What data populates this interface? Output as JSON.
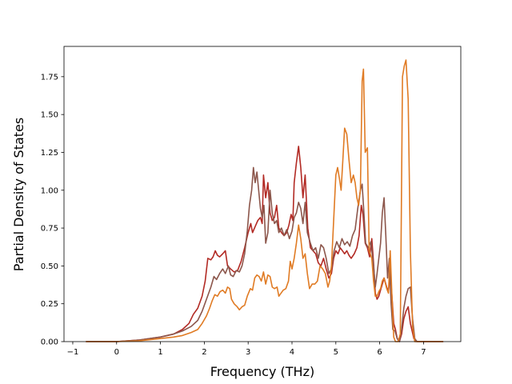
{
  "chart_data": {
    "type": "line",
    "title": "",
    "xlabel": "Frequency (THz)",
    "ylabel": "Partial Density of States",
    "xlim": [
      -1.2,
      7.85
    ],
    "ylim": [
      0.0,
      1.95
    ],
    "xticks": [
      -1,
      0,
      1,
      2,
      3,
      4,
      5,
      6,
      7
    ],
    "xtick_labels": [
      "−1",
      "0",
      "1",
      "2",
      "3",
      "4",
      "5",
      "6",
      "7"
    ],
    "yticks": [
      0.0,
      0.25,
      0.5,
      0.75,
      1.0,
      1.25,
      1.5,
      1.75
    ],
    "ytick_labels": [
      "0.00",
      "0.25",
      "0.50",
      "0.75",
      "1.00",
      "1.25",
      "1.50",
      "1.75"
    ],
    "grid": false,
    "legend": "none",
    "series": [
      {
        "color": "#b22a24",
        "points": [
          [
            -0.7,
            0.0
          ],
          [
            0.0,
            0.0
          ],
          [
            0.5,
            0.01
          ],
          [
            1.0,
            0.03
          ],
          [
            1.3,
            0.05
          ],
          [
            1.5,
            0.08
          ],
          [
            1.65,
            0.12
          ],
          [
            1.75,
            0.18
          ],
          [
            1.85,
            0.22
          ],
          [
            1.95,
            0.3
          ],
          [
            2.02,
            0.4
          ],
          [
            2.08,
            0.55
          ],
          [
            2.15,
            0.54
          ],
          [
            2.2,
            0.56
          ],
          [
            2.25,
            0.6
          ],
          [
            2.3,
            0.57
          ],
          [
            2.35,
            0.56
          ],
          [
            2.42,
            0.58
          ],
          [
            2.48,
            0.6
          ],
          [
            2.53,
            0.5
          ],
          [
            2.6,
            0.48
          ],
          [
            2.68,
            0.46
          ],
          [
            2.76,
            0.47
          ],
          [
            2.84,
            0.53
          ],
          [
            2.92,
            0.62
          ],
          [
            3.0,
            0.72
          ],
          [
            3.06,
            0.78
          ],
          [
            3.1,
            0.72
          ],
          [
            3.16,
            0.76
          ],
          [
            3.22,
            0.8
          ],
          [
            3.28,
            0.82
          ],
          [
            3.32,
            0.78
          ],
          [
            3.35,
            1.1
          ],
          [
            3.4,
            0.95
          ],
          [
            3.45,
            1.05
          ],
          [
            3.5,
            0.85
          ],
          [
            3.55,
            0.8
          ],
          [
            3.6,
            0.82
          ],
          [
            3.65,
            0.9
          ],
          [
            3.7,
            0.75
          ],
          [
            3.76,
            0.72
          ],
          [
            3.82,
            0.7
          ],
          [
            3.88,
            0.72
          ],
          [
            3.93,
            0.77
          ],
          [
            3.98,
            0.84
          ],
          [
            4.02,
            0.8
          ],
          [
            4.05,
            1.05
          ],
          [
            4.1,
            1.18
          ],
          [
            4.15,
            1.29
          ],
          [
            4.2,
            1.15
          ],
          [
            4.25,
            0.95
          ],
          [
            4.3,
            1.1
          ],
          [
            4.36,
            0.75
          ],
          [
            4.42,
            0.62
          ],
          [
            4.48,
            0.6
          ],
          [
            4.54,
            0.58
          ],
          [
            4.6,
            0.52
          ],
          [
            4.66,
            0.5
          ],
          [
            4.72,
            0.55
          ],
          [
            4.78,
            0.48
          ],
          [
            4.84,
            0.42
          ],
          [
            4.9,
            0.45
          ],
          [
            4.95,
            0.55
          ],
          [
            5.0,
            0.6
          ],
          [
            5.05,
            0.58
          ],
          [
            5.1,
            0.62
          ],
          [
            5.15,
            0.6
          ],
          [
            5.2,
            0.58
          ],
          [
            5.25,
            0.6
          ],
          [
            5.3,
            0.57
          ],
          [
            5.35,
            0.55
          ],
          [
            5.42,
            0.58
          ],
          [
            5.48,
            0.62
          ],
          [
            5.53,
            0.7
          ],
          [
            5.58,
            0.9
          ],
          [
            5.62,
            0.84
          ],
          [
            5.67,
            0.65
          ],
          [
            5.72,
            0.62
          ],
          [
            5.77,
            0.56
          ],
          [
            5.82,
            0.68
          ],
          [
            5.86,
            0.52
          ],
          [
            5.9,
            0.32
          ],
          [
            5.94,
            0.28
          ],
          [
            5.98,
            0.3
          ],
          [
            6.02,
            0.34
          ],
          [
            6.06,
            0.38
          ],
          [
            6.1,
            0.42
          ],
          [
            6.16,
            0.36
          ],
          [
            6.2,
            0.33
          ],
          [
            6.24,
            0.45
          ],
          [
            6.28,
            0.3
          ],
          [
            6.32,
            0.12
          ],
          [
            6.36,
            0.08
          ],
          [
            6.4,
            0.02
          ],
          [
            6.45,
            0.0
          ],
          [
            6.5,
            0.05
          ],
          [
            6.55,
            0.15
          ],
          [
            6.6,
            0.2
          ],
          [
            6.65,
            0.23
          ],
          [
            6.7,
            0.12
          ],
          [
            6.78,
            0.02
          ],
          [
            6.85,
            0.0
          ],
          [
            7.45,
            0.0
          ]
        ]
      },
      {
        "color": "#8c564b",
        "points": [
          [
            -0.7,
            0.0
          ],
          [
            0.0,
            0.0
          ],
          [
            0.5,
            0.01
          ],
          [
            1.0,
            0.03
          ],
          [
            1.3,
            0.05
          ],
          [
            1.5,
            0.07
          ],
          [
            1.7,
            0.1
          ],
          [
            1.85,
            0.14
          ],
          [
            1.95,
            0.2
          ],
          [
            2.05,
            0.28
          ],
          [
            2.15,
            0.36
          ],
          [
            2.22,
            0.43
          ],
          [
            2.28,
            0.41
          ],
          [
            2.35,
            0.45
          ],
          [
            2.42,
            0.48
          ],
          [
            2.48,
            0.45
          ],
          [
            2.55,
            0.5
          ],
          [
            2.6,
            0.44
          ],
          [
            2.66,
            0.43
          ],
          [
            2.73,
            0.47
          ],
          [
            2.8,
            0.46
          ],
          [
            2.86,
            0.5
          ],
          [
            2.92,
            0.58
          ],
          [
            2.98,
            0.73
          ],
          [
            3.03,
            0.9
          ],
          [
            3.08,
            1.0
          ],
          [
            3.12,
            1.15
          ],
          [
            3.16,
            1.05
          ],
          [
            3.2,
            1.12
          ],
          [
            3.24,
            1.0
          ],
          [
            3.28,
            0.88
          ],
          [
            3.32,
            0.82
          ],
          [
            3.36,
            0.9
          ],
          [
            3.4,
            0.65
          ],
          [
            3.45,
            0.72
          ],
          [
            3.5,
            1.0
          ],
          [
            3.55,
            0.85
          ],
          [
            3.6,
            0.78
          ],
          [
            3.65,
            0.8
          ],
          [
            3.7,
            0.72
          ],
          [
            3.76,
            0.75
          ],
          [
            3.82,
            0.7
          ],
          [
            3.88,
            0.74
          ],
          [
            3.94,
            0.68
          ],
          [
            4.0,
            0.73
          ],
          [
            4.05,
            0.82
          ],
          [
            4.1,
            0.85
          ],
          [
            4.15,
            0.92
          ],
          [
            4.2,
            0.88
          ],
          [
            4.25,
            0.78
          ],
          [
            4.3,
            0.92
          ],
          [
            4.35,
            0.72
          ],
          [
            4.42,
            0.65
          ],
          [
            4.48,
            0.6
          ],
          [
            4.54,
            0.62
          ],
          [
            4.6,
            0.55
          ],
          [
            4.66,
            0.64
          ],
          [
            4.72,
            0.62
          ],
          [
            4.78,
            0.55
          ],
          [
            4.84,
            0.45
          ],
          [
            4.9,
            0.48
          ],
          [
            4.96,
            0.6
          ],
          [
            5.02,
            0.66
          ],
          [
            5.08,
            0.62
          ],
          [
            5.14,
            0.68
          ],
          [
            5.2,
            0.64
          ],
          [
            5.26,
            0.66
          ],
          [
            5.32,
            0.63
          ],
          [
            5.38,
            0.7
          ],
          [
            5.44,
            0.74
          ],
          [
            5.5,
            0.88
          ],
          [
            5.56,
            1.0
          ],
          [
            5.6,
            1.04
          ],
          [
            5.64,
            0.85
          ],
          [
            5.68,
            0.65
          ],
          [
            5.74,
            0.62
          ],
          [
            5.8,
            0.66
          ],
          [
            5.86,
            0.5
          ],
          [
            5.9,
            0.36
          ],
          [
            5.94,
            0.45
          ],
          [
            5.98,
            0.55
          ],
          [
            6.02,
            0.65
          ],
          [
            6.06,
            0.85
          ],
          [
            6.1,
            0.95
          ],
          [
            6.14,
            0.7
          ],
          [
            6.18,
            0.42
          ],
          [
            6.22,
            0.55
          ],
          [
            6.26,
            0.25
          ],
          [
            6.3,
            0.08
          ],
          [
            6.35,
            0.07
          ],
          [
            6.4,
            0.02
          ],
          [
            6.45,
            0.0
          ],
          [
            6.5,
            0.08
          ],
          [
            6.55,
            0.22
          ],
          [
            6.6,
            0.3
          ],
          [
            6.65,
            0.35
          ],
          [
            6.7,
            0.36
          ],
          [
            6.75,
            0.15
          ],
          [
            6.8,
            0.02
          ],
          [
            6.85,
            0.0
          ],
          [
            7.45,
            0.0
          ]
        ]
      },
      {
        "color": "#e07b24",
        "points": [
          [
            -0.7,
            0.0
          ],
          [
            0.0,
            0.0
          ],
          [
            0.5,
            0.005
          ],
          [
            1.0,
            0.02
          ],
          [
            1.3,
            0.03
          ],
          [
            1.5,
            0.04
          ],
          [
            1.7,
            0.06
          ],
          [
            1.85,
            0.08
          ],
          [
            1.95,
            0.12
          ],
          [
            2.05,
            0.17
          ],
          [
            2.12,
            0.22
          ],
          [
            2.18,
            0.27
          ],
          [
            2.24,
            0.31
          ],
          [
            2.3,
            0.3
          ],
          [
            2.36,
            0.33
          ],
          [
            2.42,
            0.34
          ],
          [
            2.48,
            0.32
          ],
          [
            2.53,
            0.36
          ],
          [
            2.58,
            0.35
          ],
          [
            2.62,
            0.28
          ],
          [
            2.68,
            0.25
          ],
          [
            2.75,
            0.23
          ],
          [
            2.8,
            0.21
          ],
          [
            2.86,
            0.23
          ],
          [
            2.92,
            0.24
          ],
          [
            2.98,
            0.3
          ],
          [
            3.05,
            0.35
          ],
          [
            3.1,
            0.34
          ],
          [
            3.15,
            0.42
          ],
          [
            3.2,
            0.44
          ],
          [
            3.25,
            0.43
          ],
          [
            3.3,
            0.4
          ],
          [
            3.35,
            0.46
          ],
          [
            3.4,
            0.38
          ],
          [
            3.45,
            0.44
          ],
          [
            3.5,
            0.43
          ],
          [
            3.55,
            0.36
          ],
          [
            3.6,
            0.35
          ],
          [
            3.66,
            0.36
          ],
          [
            3.7,
            0.3
          ],
          [
            3.75,
            0.32
          ],
          [
            3.8,
            0.34
          ],
          [
            3.86,
            0.35
          ],
          [
            3.92,
            0.4
          ],
          [
            3.96,
            0.53
          ],
          [
            4.0,
            0.48
          ],
          [
            4.05,
            0.55
          ],
          [
            4.1,
            0.65
          ],
          [
            4.15,
            0.77
          ],
          [
            4.2,
            0.68
          ],
          [
            4.25,
            0.55
          ],
          [
            4.3,
            0.58
          ],
          [
            4.35,
            0.45
          ],
          [
            4.4,
            0.35
          ],
          [
            4.46,
            0.38
          ],
          [
            4.52,
            0.38
          ],
          [
            4.58,
            0.4
          ],
          [
            4.64,
            0.5
          ],
          [
            4.7,
            0.48
          ],
          [
            4.76,
            0.45
          ],
          [
            4.82,
            0.36
          ],
          [
            4.86,
            0.4
          ],
          [
            4.9,
            0.5
          ],
          [
            4.95,
            0.8
          ],
          [
            5.0,
            1.1
          ],
          [
            5.04,
            1.15
          ],
          [
            5.08,
            1.08
          ],
          [
            5.12,
            1.0
          ],
          [
            5.16,
            1.2
          ],
          [
            5.2,
            1.41
          ],
          [
            5.25,
            1.37
          ],
          [
            5.3,
            1.2
          ],
          [
            5.35,
            1.05
          ],
          [
            5.4,
            1.1
          ],
          [
            5.44,
            1.05
          ],
          [
            5.48,
            0.95
          ],
          [
            5.52,
            0.9
          ],
          [
            5.56,
            1.0
          ],
          [
            5.6,
            1.72
          ],
          [
            5.63,
            1.8
          ],
          [
            5.67,
            1.25
          ],
          [
            5.72,
            1.28
          ],
          [
            5.76,
            0.6
          ],
          [
            5.82,
            0.55
          ],
          [
            5.86,
            0.4
          ],
          [
            5.9,
            0.3
          ],
          [
            5.94,
            0.3
          ],
          [
            5.98,
            0.33
          ],
          [
            6.02,
            0.35
          ],
          [
            6.06,
            0.4
          ],
          [
            6.1,
            0.42
          ],
          [
            6.16,
            0.35
          ],
          [
            6.2,
            0.32
          ],
          [
            6.24,
            0.6
          ],
          [
            6.28,
            0.3
          ],
          [
            6.32,
            0.03
          ],
          [
            6.36,
            0.0
          ],
          [
            6.42,
            0.0
          ],
          [
            6.47,
            0.05
          ],
          [
            6.52,
            1.75
          ],
          [
            6.56,
            1.82
          ],
          [
            6.6,
            1.86
          ],
          [
            6.65,
            1.6
          ],
          [
            6.7,
            0.6
          ],
          [
            6.75,
            0.1
          ],
          [
            6.8,
            0.0
          ],
          [
            7.45,
            0.0
          ]
        ]
      }
    ]
  }
}
